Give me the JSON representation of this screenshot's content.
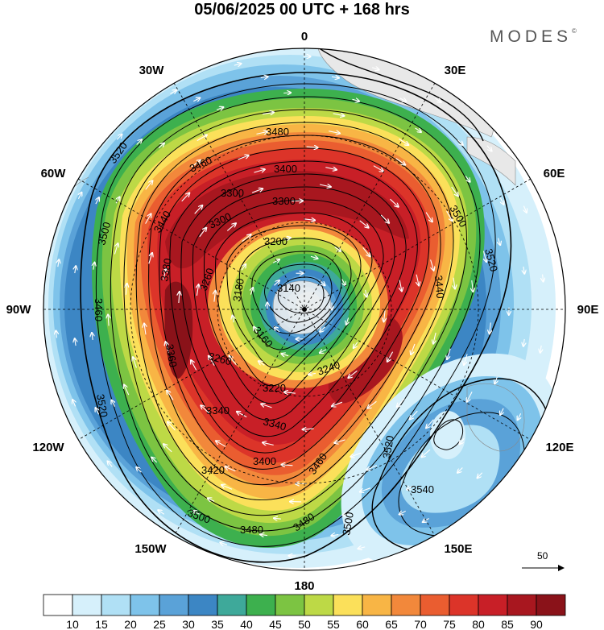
{
  "title": "05/06/2025  00 UTC  + 168 hrs",
  "brand": "MODES",
  "brand_mark": "©",
  "longitude_labels": {
    "lon_0": "0",
    "lon_30e": "30E",
    "lon_60e": "60E",
    "lon_90e": "90E",
    "lon_120e": "120E",
    "lon_150e": "150E",
    "lon_180": "180",
    "lon_150w": "150W",
    "lon_120w": "120W",
    "lon_90w": "90W",
    "lon_60w": "60W",
    "lon_30w": "30W"
  },
  "contour_labels": {
    "c1": "3480",
    "c2": "3520",
    "c3": "3460",
    "c4": "3400",
    "c5": "3300",
    "c6": "3200",
    "c7": "3500",
    "c8": "3520",
    "c9": "3500",
    "c10": "3440",
    "c11": "3300",
    "c12": "3380",
    "c13": "3260",
    "c14": "3180",
    "c15": "3140",
    "c16": "3160",
    "c17": "3260",
    "c18": "3220",
    "c19": "3340",
    "c20": "3400",
    "c21": "3420",
    "c22": "3500",
    "c23": "3480",
    "c24": "3460",
    "c25": "3480",
    "c26": "3500",
    "c27": "3520",
    "c28": "3540",
    "c29": "3520",
    "c30": "3460",
    "c31": "3340",
    "c32": "3240",
    "c33": "3360",
    "c34": "3300",
    "c35": "3440"
  },
  "vector_reference": "50",
  "colorbar": {
    "labels": [
      "10",
      "15",
      "20",
      "25",
      "30",
      "35",
      "40",
      "45",
      "50",
      "55",
      "60",
      "65",
      "70",
      "75",
      "80",
      "85",
      "90"
    ],
    "colors": [
      "#ffffff",
      "#d6f0fb",
      "#b0e0f5",
      "#7ec3ea",
      "#5aa2d8",
      "#3c86c4",
      "#3ea99a",
      "#3db04e",
      "#7cc442",
      "#bdd946",
      "#fbe05a",
      "#f8b545",
      "#f2883b",
      "#ea5d30",
      "#dc3429",
      "#c81f27",
      "#a8171f",
      "#8a1219"
    ]
  }
}
